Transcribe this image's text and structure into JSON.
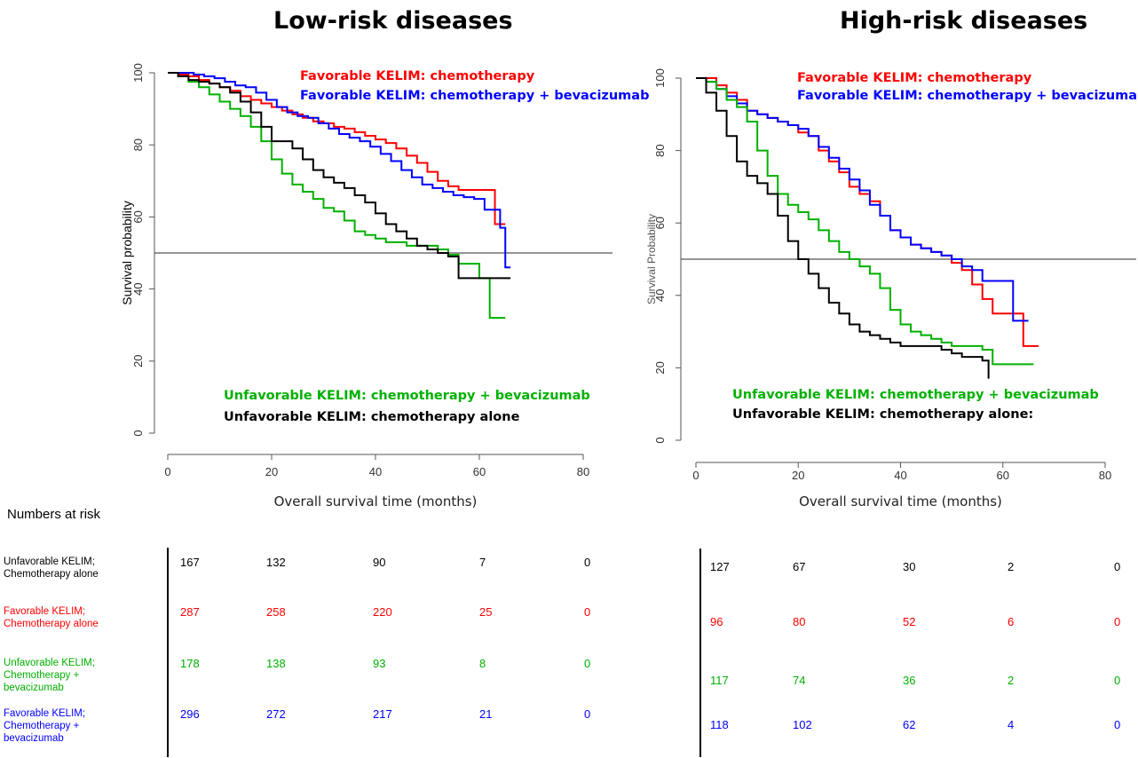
{
  "titles": {
    "left": "Low-risk diseases",
    "right": "High-risk diseases"
  },
  "colors": {
    "chemo_fav": "#ff0000",
    "bev_fav": "#0000ff",
    "bev_unfav": "#00b000",
    "chemo_unfav": "#000000",
    "reference_line": "#555555"
  },
  "chart_data": [
    {
      "type": "line",
      "title": "Low-risk diseases",
      "xlabel": "Overall survival time (months)",
      "ylabel": "Survival probability",
      "xlim": [
        0,
        85
      ],
      "ylim": [
        0,
        100
      ],
      "xticks": [
        0,
        20,
        40,
        60,
        80
      ],
      "yticks": [
        0,
        20,
        40,
        60,
        80,
        100
      ],
      "reference_line_y": 50,
      "annotations": [
        "Favorable KELIM: chemotherapy",
        "Favorable KELIM: chemotherapy + bevacizumab",
        "Unfavorable KELIM: chemotherapy + bevacizumab",
        "Unfavorable KELIM: chemotherapy alone"
      ],
      "series": [
        {
          "key": "chemo_fav",
          "x": [
            0,
            2,
            4,
            6,
            8,
            10,
            12,
            14,
            16,
            18,
            20,
            22,
            24,
            26,
            28,
            30,
            32,
            34,
            36,
            38,
            40,
            42,
            44,
            46,
            48,
            50,
            52,
            54,
            56,
            58,
            60,
            62,
            63,
            64,
            65
          ],
          "y": [
            100,
            99.5,
            99,
            98,
            97,
            96,
            95,
            93.5,
            92.5,
            91.5,
            90.5,
            89.5,
            88.5,
            87.5,
            86.5,
            86,
            85,
            84.5,
            83.5,
            82.5,
            81.5,
            80.5,
            79,
            77,
            75,
            72.5,
            70,
            68.5,
            67.5,
            67.5,
            67.5,
            67.5,
            58,
            58,
            58
          ]
        },
        {
          "key": "bev_fav",
          "x": [
            0,
            3,
            5,
            7,
            9,
            11,
            13,
            15,
            17,
            19,
            21,
            23,
            25,
            27,
            29,
            31,
            33,
            35,
            37,
            39,
            41,
            43,
            45,
            47,
            49,
            51,
            53,
            55,
            57,
            59,
            61,
            63,
            64,
            65,
            66
          ],
          "y": [
            100,
            100,
            99.5,
            99,
            98.5,
            97.5,
            96.5,
            96,
            94.5,
            92.5,
            90.5,
            89,
            88,
            87.5,
            86,
            84.5,
            83,
            82,
            81,
            79.5,
            77.5,
            75.5,
            73,
            71,
            69,
            68,
            67,
            66,
            65.5,
            65,
            62,
            62,
            57,
            46,
            46
          ]
        },
        {
          "key": "bev_unfav",
          "x": [
            0,
            2,
            4,
            6,
            8,
            10,
            12,
            14,
            16,
            18,
            20,
            22,
            24,
            26,
            28,
            30,
            32,
            34,
            36,
            38,
            40,
            42,
            44,
            46,
            48,
            50,
            52,
            54,
            56,
            58,
            60,
            62,
            63,
            65
          ],
          "y": [
            100,
            99,
            97.5,
            96,
            94,
            92,
            90,
            88,
            85,
            81,
            76,
            72,
            69,
            67,
            65,
            62.5,
            61.5,
            59,
            56,
            55,
            54,
            53,
            53,
            52,
            52,
            52,
            51,
            49.5,
            47,
            47,
            43,
            32,
            32,
            32
          ]
        },
        {
          "key": "chemo_unfav",
          "x": [
            0,
            2,
            4,
            6,
            8,
            10,
            12,
            14,
            16,
            18,
            20,
            22,
            24,
            26,
            28,
            30,
            32,
            34,
            36,
            38,
            40,
            42,
            44,
            46,
            48,
            50,
            52,
            54,
            56,
            58,
            60,
            62,
            64,
            66
          ],
          "y": [
            100,
            99,
            98,
            97.5,
            97,
            96,
            94.5,
            92,
            89,
            85,
            81,
            81,
            79,
            76,
            73,
            71,
            69.5,
            68,
            66,
            64,
            61,
            58,
            56,
            54,
            52,
            51,
            50,
            49,
            43,
            43,
            43,
            43,
            43,
            43
          ]
        }
      ]
    },
    {
      "type": "line",
      "title": "High-risk diseases",
      "xlabel": "Overall survival time (months)",
      "ylabel": "Survival Probability",
      "xlim": [
        0,
        85
      ],
      "ylim": [
        0,
        100
      ],
      "xticks": [
        0,
        20,
        40,
        60,
        80
      ],
      "yticks": [
        0,
        20,
        40,
        60,
        80,
        100
      ],
      "reference_line_y": 50,
      "annotations": [
        "Favorable KELIM: chemotherapy",
        "Favorable KELIM: chemotherapy + bevacizumab",
        "Unfavorable KELIM: chemotherapy + bevacizumab",
        "Unfavorable KELIM: chemotherapy alone:"
      ],
      "series": [
        {
          "key": "chemo_fav",
          "x": [
            0,
            2,
            4,
            6,
            8,
            10,
            12,
            14,
            16,
            18,
            20,
            22,
            24,
            26,
            28,
            30,
            32,
            34,
            36,
            38,
            40,
            42,
            44,
            46,
            48,
            50,
            52,
            54,
            56,
            58,
            60,
            62,
            64,
            66,
            67
          ],
          "y": [
            100,
            100,
            98,
            96,
            94,
            91,
            90,
            89,
            88,
            87,
            85,
            84,
            80,
            77,
            74,
            70,
            68,
            66,
            62,
            58,
            56,
            54,
            53,
            52,
            51,
            49,
            47,
            43,
            39,
            35,
            35,
            35,
            26,
            26,
            26
          ]
        },
        {
          "key": "bev_fav",
          "x": [
            0,
            2,
            4,
            6,
            8,
            10,
            12,
            14,
            16,
            18,
            20,
            22,
            24,
            26,
            28,
            30,
            32,
            34,
            36,
            38,
            40,
            42,
            44,
            46,
            48,
            50,
            52,
            54,
            56,
            58,
            60,
            62,
            64,
            65
          ],
          "y": [
            100,
            99,
            97,
            95,
            93,
            91,
            90,
            89,
            88,
            87,
            86,
            84,
            81,
            78,
            75,
            72,
            69,
            65,
            62,
            58,
            56,
            54,
            53,
            52,
            51,
            50,
            48,
            47,
            44,
            44,
            44,
            33,
            33,
            33
          ]
        },
        {
          "key": "bev_unfav",
          "x": [
            0,
            2,
            4,
            6,
            8,
            10,
            12,
            14,
            16,
            18,
            20,
            22,
            24,
            26,
            28,
            30,
            32,
            34,
            36,
            38,
            40,
            42,
            44,
            46,
            48,
            50,
            52,
            54,
            56,
            58,
            60,
            62,
            64,
            66
          ],
          "y": [
            100,
            99,
            97,
            94,
            92,
            88,
            80,
            73,
            68,
            65,
            63,
            61,
            58,
            55,
            52,
            50,
            48,
            46,
            42,
            36,
            32,
            30,
            29,
            28,
            27,
            26,
            26,
            26,
            25,
            21,
            21,
            21,
            21,
            21
          ]
        },
        {
          "key": "chemo_unfav",
          "x": [
            0,
            2,
            4,
            6,
            8,
            10,
            12,
            14,
            16,
            18,
            20,
            22,
            24,
            26,
            28,
            30,
            32,
            34,
            36,
            38,
            40,
            42,
            44,
            46,
            48,
            50,
            52,
            54,
            56,
            57,
            57.2
          ],
          "y": [
            100,
            96,
            91,
            84,
            77,
            73,
            71,
            68,
            62,
            55,
            50,
            46,
            42,
            38,
            35,
            32,
            30,
            29,
            28,
            27,
            26,
            26,
            26,
            26,
            25,
            24,
            23,
            23,
            22,
            22,
            17
          ]
        }
      ]
    }
  ],
  "risk_table": {
    "header": "Numbers at risk",
    "rows": [
      {
        "key": "chemo_unfav",
        "label": "Unfavorable KELIM;\nChemotherapy alone",
        "low": [
          "167",
          "132",
          "90",
          "7",
          "0"
        ],
        "high": [
          "127",
          "67",
          "30",
          "2",
          "0"
        ]
      },
      {
        "key": "chemo_fav",
        "label": "Favorable KELIM;\nChemotherapy alone",
        "low": [
          "287",
          "258",
          "220",
          "25",
          "0"
        ],
        "high": [
          "96",
          "80",
          "52",
          "6",
          "0"
        ]
      },
      {
        "key": "bev_unfav",
        "label": "Unfavorable KELIM;\nChemotherapy +\nbevacizumab",
        "low": [
          "178",
          "138",
          "93",
          "8",
          "0"
        ],
        "high": [
          "117",
          "74",
          "36",
          "2",
          "0"
        ]
      },
      {
        "key": "bev_fav",
        "label": "Favorable KELIM;\nChemotherapy +\nbevacizumab",
        "low": [
          "296",
          "272",
          "217",
          "21",
          "0"
        ],
        "high": [
          "118",
          "102",
          "62",
          "4",
          "0"
        ]
      }
    ]
  }
}
